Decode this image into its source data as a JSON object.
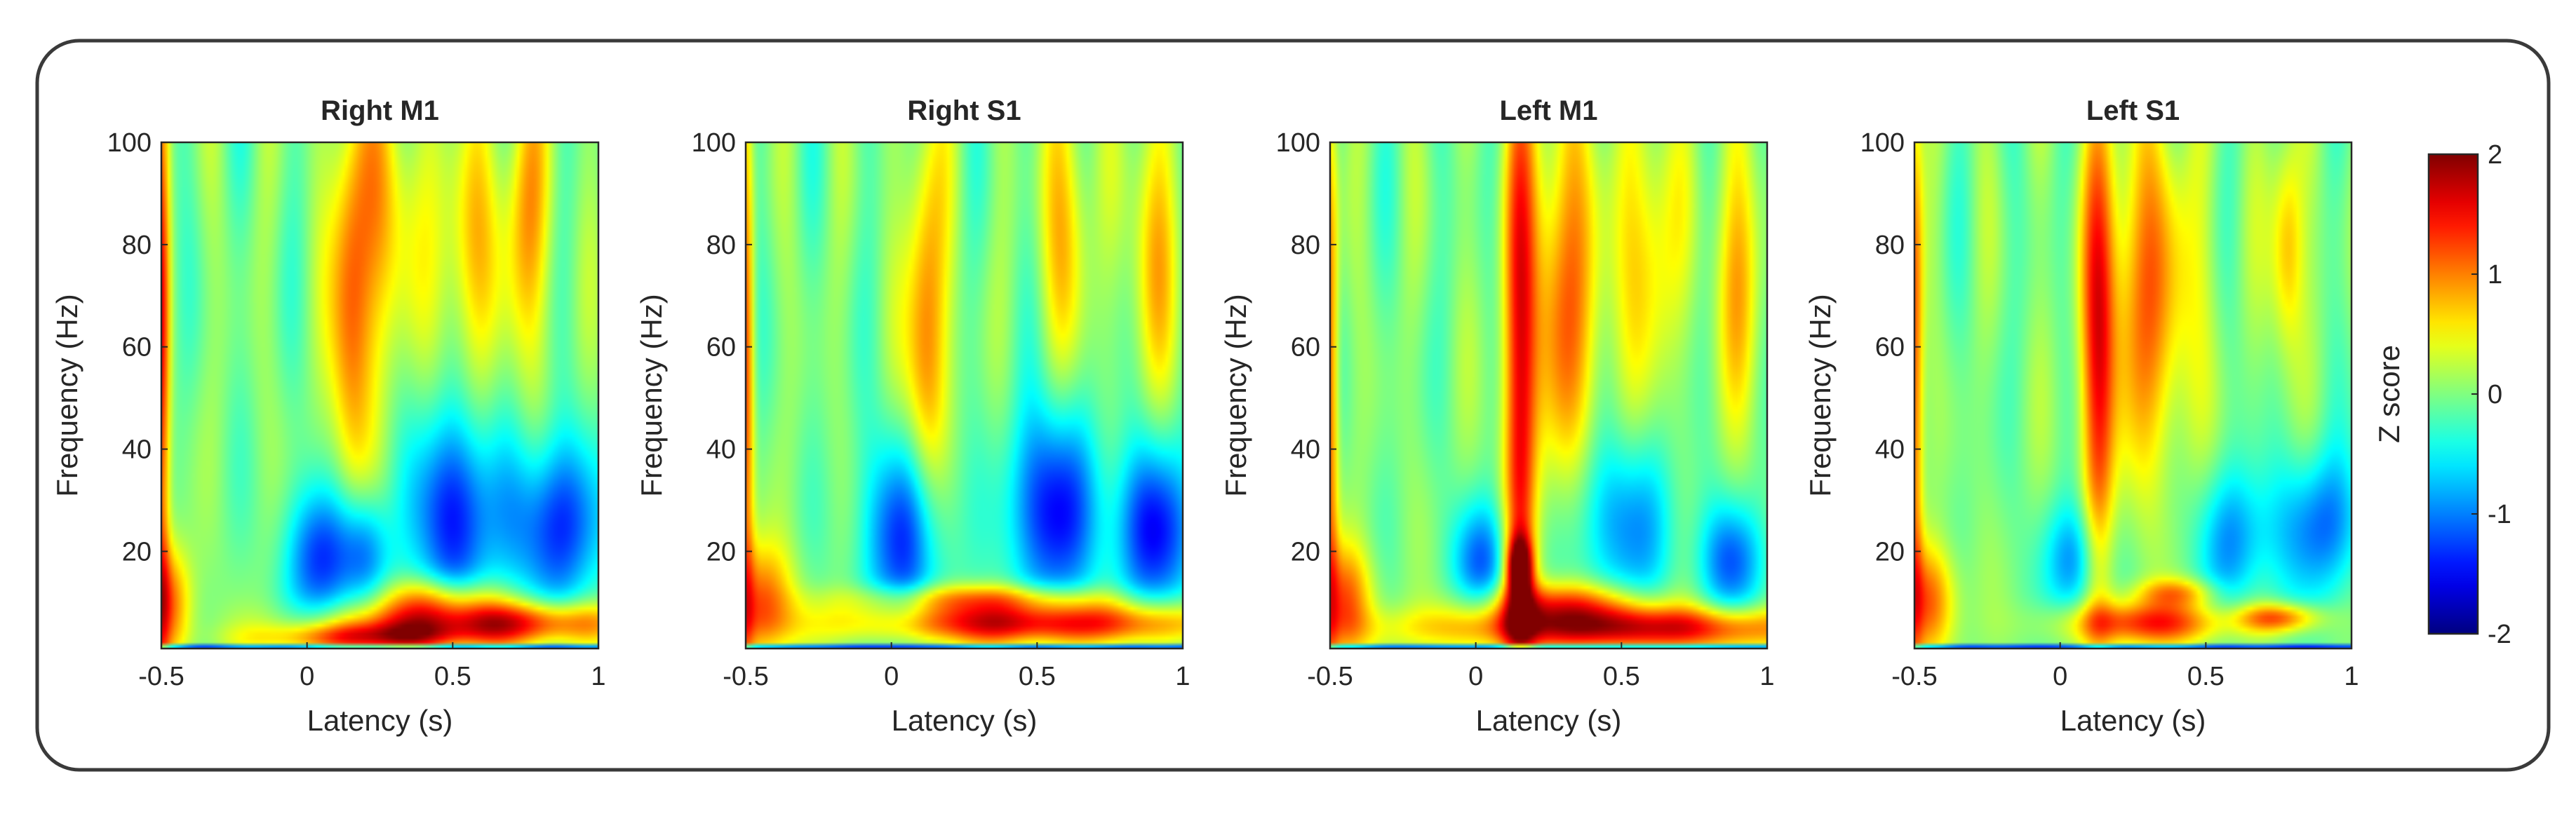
{
  "chart_data": {
    "type": "heatmap",
    "shared": {
      "xlabel": "Latency (s)",
      "ylabel": "Frequency (Hz)",
      "xlim": [
        -0.5,
        1
      ],
      "ylim": [
        1,
        100
      ],
      "xticks": [
        -0.5,
        0,
        0.5,
        1
      ],
      "xtick_labels": [
        "-0.5",
        "0",
        "0.5",
        "1"
      ],
      "yticks": [
        20,
        40,
        60,
        80,
        100
      ],
      "ytick_labels": [
        "20",
        "40",
        "60",
        "80",
        "100"
      ],
      "colormap": "jet",
      "colorbar": {
        "label": "Z score",
        "range": [
          -2,
          2
        ],
        "ticks": [
          -2,
          -1,
          0,
          1,
          2
        ],
        "tick_labels": [
          "-2",
          "-1",
          "0",
          "1",
          "2"
        ]
      }
    },
    "panels": [
      {
        "title": "Right M1",
        "features": [
          {
            "t": -0.5,
            "f": 60,
            "dt": 0.02,
            "df": 45,
            "z": 1.4
          },
          {
            "t": -0.48,
            "f": 10,
            "dt": 0.06,
            "df": 8,
            "z": 1.2
          },
          {
            "t": 0.15,
            "f": 68,
            "dt": 0.05,
            "df": 28,
            "z": 1.2
          },
          {
            "t": 0.28,
            "f": 85,
            "dt": 0.08,
            "df": 20,
            "z": 0.8
          },
          {
            "t": 0.55,
            "f": 80,
            "dt": 0.07,
            "df": 18,
            "z": 0.8
          },
          {
            "t": 0.75,
            "f": 85,
            "dt": 0.06,
            "df": 20,
            "z": 0.9
          },
          {
            "t": 0.05,
            "f": 18,
            "dt": 0.08,
            "df": 10,
            "z": -1.4
          },
          {
            "t": 0.2,
            "f": 20,
            "dt": 0.06,
            "df": 8,
            "z": -1.0
          },
          {
            "t": 0.5,
            "f": 27,
            "dt": 0.1,
            "df": 14,
            "z": -1.5
          },
          {
            "t": 0.85,
            "f": 25,
            "dt": 0.12,
            "df": 12,
            "z": -1.4
          },
          {
            "t": 0.6,
            "f": 6,
            "dt": 0.35,
            "df": 3,
            "z": 2.0
          },
          {
            "t": 0.2,
            "f": 3,
            "dt": 0.25,
            "df": 2,
            "z": 1.4
          },
          {
            "t": 0.45,
            "f": 11,
            "dt": 0.15,
            "df": 3,
            "z": 1.0
          }
        ]
      },
      {
        "title": "Right S1",
        "features": [
          {
            "t": -0.5,
            "f": 55,
            "dt": 0.02,
            "df": 40,
            "z": 1.3
          },
          {
            "t": -0.45,
            "f": 10,
            "dt": 0.08,
            "df": 8,
            "z": 1.2
          },
          {
            "t": 0.12,
            "f": 62,
            "dt": 0.05,
            "df": 28,
            "z": 1.2
          },
          {
            "t": 0.6,
            "f": 85,
            "dt": 0.06,
            "df": 20,
            "z": 0.8
          },
          {
            "t": 0.9,
            "f": 80,
            "dt": 0.06,
            "df": 20,
            "z": 0.8
          },
          {
            "t": 0.05,
            "f": 22,
            "dt": 0.1,
            "df": 14,
            "z": -1.4
          },
          {
            "t": 0.55,
            "f": 28,
            "dt": 0.1,
            "df": 14,
            "z": -1.6
          },
          {
            "t": 0.9,
            "f": 24,
            "dt": 0.1,
            "df": 12,
            "z": -1.5
          },
          {
            "t": 0.5,
            "f": 6,
            "dt": 0.45,
            "df": 3,
            "z": 2.0
          },
          {
            "t": 0.3,
            "f": 11,
            "dt": 0.3,
            "df": 2,
            "z": 0.9
          }
        ]
      },
      {
        "title": "Left M1",
        "features": [
          {
            "t": -0.5,
            "f": 55,
            "dt": 0.02,
            "df": 40,
            "z": 1.3
          },
          {
            "t": -0.45,
            "f": 10,
            "dt": 0.07,
            "df": 8,
            "z": 1.2
          },
          {
            "t": 0.15,
            "f": 45,
            "dt": 0.04,
            "df": 50,
            "z": 1.4
          },
          {
            "t": 0.15,
            "f": 17,
            "dt": 0.03,
            "df": 4,
            "z": 1.9
          },
          {
            "t": 0.3,
            "f": 70,
            "dt": 0.1,
            "df": 28,
            "z": 1.1
          },
          {
            "t": 0.6,
            "f": 80,
            "dt": 0.07,
            "df": 20,
            "z": 0.8
          },
          {
            "t": 0.9,
            "f": 75,
            "dt": 0.06,
            "df": 20,
            "z": 0.8
          },
          {
            "t": 0.02,
            "f": 18,
            "dt": 0.07,
            "df": 8,
            "z": -1.1
          },
          {
            "t": 0.5,
            "f": 25,
            "dt": 0.12,
            "df": 12,
            "z": -1.0
          },
          {
            "t": 0.88,
            "f": 18,
            "dt": 0.08,
            "df": 8,
            "z": -1.1
          },
          {
            "t": 0.5,
            "f": 5,
            "dt": 0.45,
            "df": 3,
            "z": 2.0
          },
          {
            "t": 0.3,
            "f": 10,
            "dt": 0.2,
            "df": 3,
            "z": 1.2
          }
        ]
      },
      {
        "title": "Left S1",
        "features": [
          {
            "t": -0.5,
            "f": 55,
            "dt": 0.02,
            "df": 40,
            "z": 1.3
          },
          {
            "t": -0.45,
            "f": 10,
            "dt": 0.07,
            "df": 8,
            "z": 1.2
          },
          {
            "t": 0.13,
            "f": 55,
            "dt": 0.04,
            "df": 35,
            "z": 1.3
          },
          {
            "t": 0.3,
            "f": 70,
            "dt": 0.12,
            "df": 25,
            "z": 1.1
          },
          {
            "t": 0.78,
            "f": 80,
            "dt": 0.04,
            "df": 15,
            "z": 1.0
          },
          {
            "t": 0.05,
            "f": 18,
            "dt": 0.07,
            "df": 8,
            "z": -1.0
          },
          {
            "t": 0.6,
            "f": 22,
            "dt": 0.1,
            "df": 10,
            "z": -0.9
          },
          {
            "t": 0.9,
            "f": 25,
            "dt": 0.1,
            "df": 10,
            "z": -1.1
          },
          {
            "t": 0.3,
            "f": 6,
            "dt": 0.2,
            "df": 3,
            "z": 1.5
          },
          {
            "t": 0.75,
            "f": 7,
            "dt": 0.1,
            "df": 2,
            "z": 1.3
          },
          {
            "t": 0.4,
            "f": 12,
            "dt": 0.1,
            "df": 2,
            "z": 0.9
          }
        ]
      }
    ]
  }
}
